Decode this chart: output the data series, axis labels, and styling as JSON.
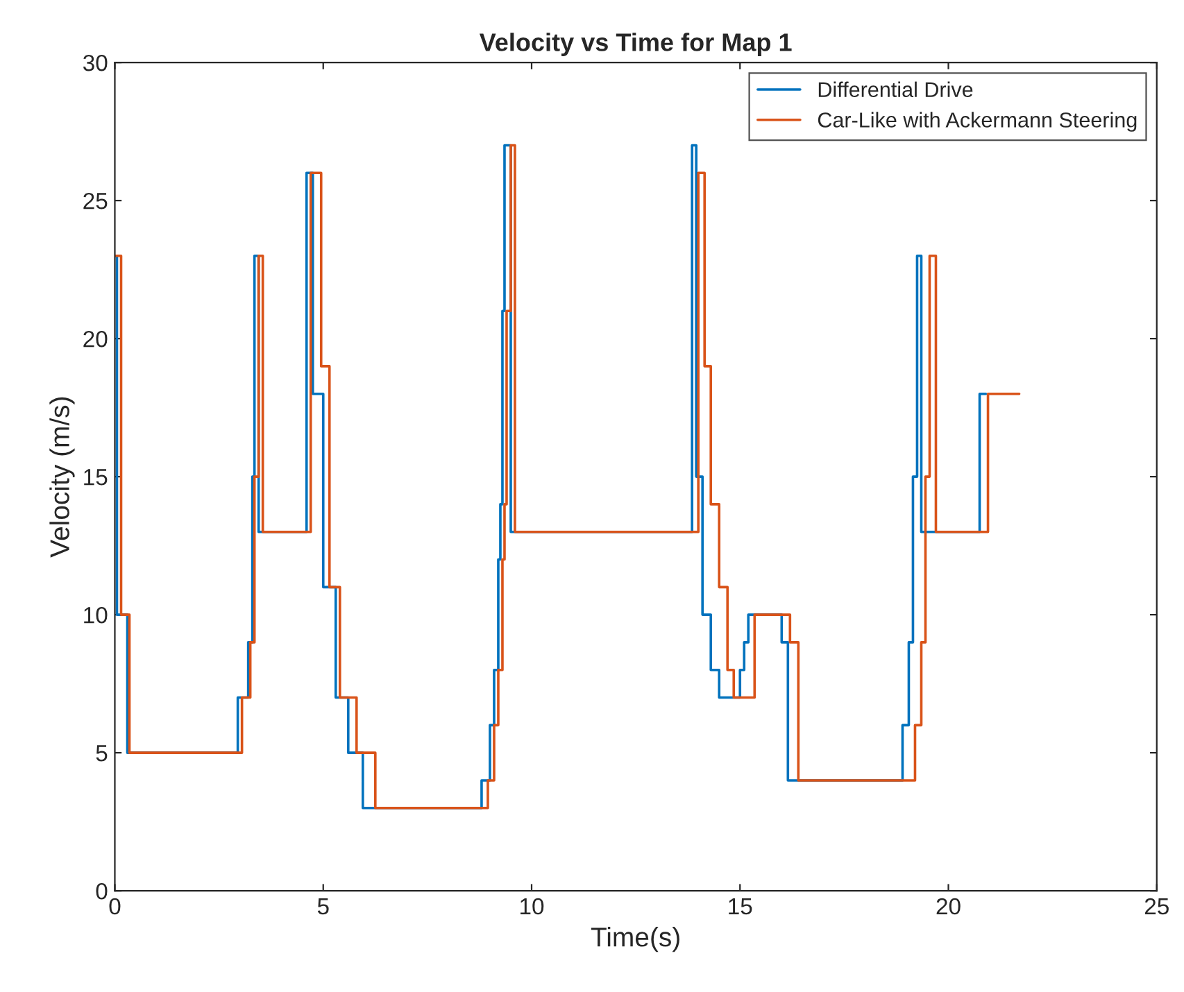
{
  "chart_data": {
    "type": "step",
    "title": "Velocity vs Time for Map 1",
    "xlabel": "Time(s)",
    "ylabel": "Velocity (m/s)",
    "xlim": [
      0,
      25
    ],
    "xticks": [
      0,
      5,
      10,
      15,
      20,
      25
    ],
    "ylim": [
      0,
      30
    ],
    "yticks": [
      0,
      5,
      10,
      15,
      20,
      25,
      30
    ],
    "grid": false,
    "legend": "top right",
    "series": [
      {
        "name": "Differential Drive",
        "color": "#0072bd",
        "x": [
          0,
          0.05,
          0.3,
          2.95,
          3.2,
          3.3,
          3.35,
          3.45,
          4.6,
          4.75,
          5.0,
          5.3,
          5.6,
          5.95,
          8.8,
          9.0,
          9.1,
          9.2,
          9.25,
          9.3,
          9.35,
          9.5,
          13.85,
          13.95,
          14.1,
          14.3,
          14.5,
          15.0,
          15.1,
          15.2,
          16.0,
          16.15,
          18.9,
          19.05,
          19.15,
          19.25,
          19.35,
          20.75,
          20.9
        ],
        "values": [
          23,
          10,
          5,
          7,
          9,
          15,
          23,
          13,
          26,
          18,
          11,
          7,
          5,
          3,
          4,
          6,
          8,
          12,
          14,
          21,
          27,
          13,
          27,
          15,
          10,
          8,
          7,
          8,
          9,
          10,
          9,
          4,
          6,
          9,
          15,
          23,
          13,
          18,
          18
        ]
      },
      {
        "name": "Car-Like with Ackermann Steering",
        "color": "#d95319",
        "x": [
          0,
          0.15,
          0.35,
          3.05,
          3.25,
          3.35,
          3.45,
          3.55,
          4.7,
          4.95,
          5.15,
          5.4,
          5.8,
          6.25,
          8.95,
          9.1,
          9.2,
          9.3,
          9.35,
          9.4,
          9.5,
          9.6,
          14.0,
          14.15,
          14.3,
          14.5,
          14.7,
          14.85,
          15.35,
          16.2,
          16.4,
          19.2,
          19.35,
          19.45,
          19.55,
          19.7,
          20.95,
          21.7
        ],
        "values": [
          23,
          10,
          5,
          7,
          9,
          15,
          23,
          13,
          26,
          19,
          11,
          7,
          5,
          3,
          4,
          6,
          8,
          12,
          14,
          21,
          27,
          13,
          26,
          19,
          14,
          11,
          8,
          7,
          10,
          9,
          4,
          6,
          9,
          15,
          23,
          13,
          18,
          18
        ]
      }
    ]
  }
}
